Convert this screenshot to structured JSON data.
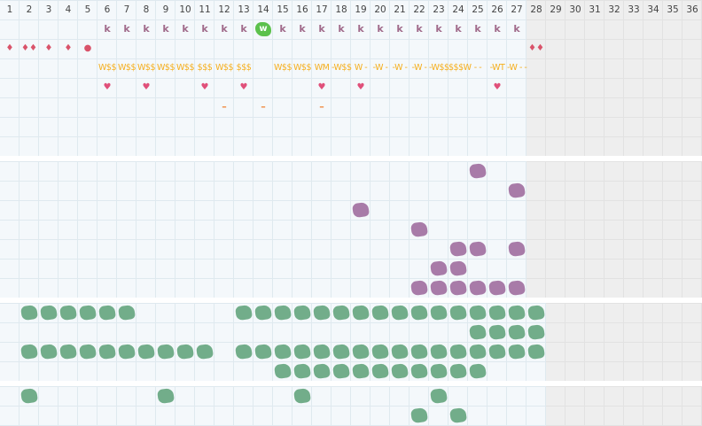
{
  "header": {
    "columns": [
      "1",
      "2",
      "3",
      "4",
      "5",
      "6",
      "7",
      "8",
      "9",
      "10",
      "11",
      "12",
      "13",
      "14",
      "15",
      "16",
      "17",
      "18",
      "19",
      "20",
      "21",
      "22",
      "23",
      "24",
      "25",
      "26",
      "27",
      "28",
      "29",
      "30",
      "31",
      "32",
      "33",
      "34",
      "35",
      "36"
    ]
  },
  "colors": {
    "grid": "#dfe9ef",
    "band_bg": "#f4f8fb",
    "inactive_bg": "#eeeeee",
    "purple": "#a87ba8",
    "green": "#72ad8a",
    "badge": "#5cc14c",
    "letter": "#a06a8a",
    "gold": "#f5ae1c",
    "heart": "#e0507a"
  },
  "symbol_rows": [
    {
      "type": "letter",
      "cells": {
        "6": "k",
        "7": "k",
        "8": "k",
        "9": "k",
        "10": "k",
        "11": "k",
        "12": "k",
        "13": "k",
        "15": "k",
        "16": "k",
        "17": "k",
        "18": "k",
        "19": "k",
        "20": "k",
        "21": "k",
        "22": "k",
        "23": "k",
        "24": "k",
        "25": "k",
        "26": "k",
        "27": "k"
      }
    },
    {
      "type": "drop",
      "cells": {
        "1": "♦",
        "2": "♦♦",
        "3": "♦",
        "4": "♦",
        "5": "●",
        "28": "♦♦"
      }
    },
    {
      "type": "dollar",
      "cells": {
        "6": "W$$",
        "7": "W$$",
        "8": "W$$",
        "9": "W$$",
        "10": "W$$",
        "11": "$$$",
        "12": "W$$",
        "13": "$$$",
        "15": "W$$",
        "16": "W$$",
        "17": "WM",
        "18": "-W$$",
        "19": "W -",
        "20": "-W -",
        "21": "-W -",
        "22": "-W -",
        "23": "-W$$",
        "24": "$$$W",
        "25": "- -",
        "26": "-WT",
        "27": "-W - -"
      }
    },
    {
      "type": "heart",
      "cells": {
        "6": "♥",
        "8": "♥",
        "11": "♥",
        "13": "♥",
        "17": "♥",
        "19": "♥",
        "26": "♥"
      }
    },
    {
      "type": "dash",
      "cells": {
        "12": "–",
        "14": "–",
        "17": "–"
      }
    }
  ],
  "badge": {
    "label": "w",
    "column": 14
  },
  "bands": [
    {
      "name": "top-band",
      "inactive_from": 28,
      "rows": 7,
      "blobs": []
    },
    {
      "name": "purple-band",
      "inactive_from": 28,
      "rows": 7,
      "blobs": [
        {
          "color": "purple",
          "cells": [
            [
              25,
              1
            ]
          ]
        },
        {
          "color": "purple",
          "cells": [
            [
              27,
              2
            ]
          ]
        },
        {
          "color": "purple",
          "cells": [
            [
              19,
              3
            ]
          ]
        },
        {
          "color": "purple",
          "cells": [
            [
              22,
              4
            ]
          ]
        },
        {
          "color": "purple",
          "cells": [
            [
              24,
              5
            ],
            [
              25,
              5
            ],
            [
              27,
              5
            ]
          ]
        },
        {
          "color": "purple",
          "cells": [
            [
              23,
              6
            ],
            [
              24,
              6
            ]
          ]
        },
        {
          "color": "purple",
          "cells": [
            [
              22,
              7
            ],
            [
              23,
              7
            ],
            [
              24,
              7
            ],
            [
              25,
              7
            ],
            [
              26,
              7
            ],
            [
              27,
              7
            ]
          ]
        }
      ]
    },
    {
      "name": "green-band",
      "inactive_from": 29,
      "rows": 4,
      "blobs": [
        {
          "color": "green",
          "cells": [
            [
              2,
              1
            ],
            [
              3,
              1
            ],
            [
              4,
              1
            ],
            [
              5,
              1
            ],
            [
              6,
              1
            ],
            [
              7,
              1
            ],
            [
              13,
              1
            ],
            [
              14,
              1
            ],
            [
              15,
              1
            ],
            [
              16,
              1
            ],
            [
              17,
              1
            ],
            [
              18,
              1
            ],
            [
              19,
              1
            ],
            [
              20,
              1
            ],
            [
              21,
              1
            ],
            [
              22,
              1
            ],
            [
              23,
              1
            ],
            [
              24,
              1
            ],
            [
              25,
              1
            ],
            [
              26,
              1
            ],
            [
              27,
              1
            ],
            [
              28,
              1
            ]
          ]
        },
        {
          "color": "green",
          "cells": [
            [
              25,
              2
            ],
            [
              26,
              2
            ],
            [
              27,
              2
            ],
            [
              28,
              2
            ]
          ]
        },
        {
          "color": "green",
          "cells": [
            [
              2,
              3
            ],
            [
              3,
              3
            ],
            [
              4,
              3
            ],
            [
              5,
              3
            ],
            [
              6,
              3
            ],
            [
              7,
              3
            ],
            [
              8,
              3
            ],
            [
              9,
              3
            ],
            [
              10,
              3
            ],
            [
              11,
              3
            ],
            [
              13,
              3
            ],
            [
              14,
              3
            ],
            [
              15,
              3
            ],
            [
              16,
              3
            ],
            [
              17,
              3
            ],
            [
              18,
              3
            ],
            [
              19,
              3
            ],
            [
              20,
              3
            ],
            [
              21,
              3
            ],
            [
              22,
              3
            ],
            [
              23,
              3
            ],
            [
              24,
              3
            ],
            [
              25,
              3
            ],
            [
              26,
              3
            ],
            [
              27,
              3
            ],
            [
              28,
              3
            ]
          ]
        },
        {
          "color": "green",
          "cells": [
            [
              15,
              4
            ],
            [
              16,
              4
            ],
            [
              17,
              4
            ],
            [
              18,
              4
            ],
            [
              19,
              4
            ],
            [
              20,
              4
            ],
            [
              21,
              4
            ],
            [
              22,
              4
            ],
            [
              23,
              4
            ],
            [
              24,
              4
            ],
            [
              25,
              4
            ]
          ]
        }
      ]
    },
    {
      "name": "bottom-band",
      "inactive_from": 29,
      "rows": 2,
      "blobs": [
        {
          "color": "green",
          "cells": [
            [
              2,
              1
            ],
            [
              9,
              1
            ],
            [
              16,
              1
            ],
            [
              23,
              1
            ]
          ]
        },
        {
          "color": "green",
          "cells": [
            [
              22,
              2
            ],
            [
              24,
              2
            ]
          ]
        }
      ]
    }
  ]
}
